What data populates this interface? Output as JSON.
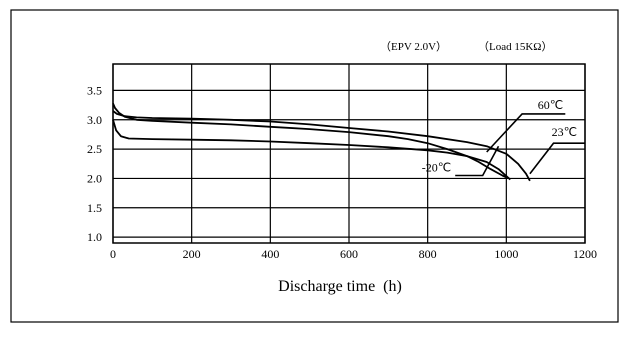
{
  "chart_data": {
    "type": "line",
    "title": "",
    "notes": [
      "（EPV 2.0V）",
      "（Load 15KΩ）"
    ],
    "xlabel": "Discharge time  (h)",
    "ylabel": "",
    "xlim": [
      0,
      1200
    ],
    "ylim": [
      0.9,
      3.95
    ],
    "grid": true,
    "x_ticks": [
      0,
      200,
      400,
      600,
      800,
      1000,
      1200
    ],
    "y_ticks": [
      1.0,
      1.5,
      2.0,
      2.5,
      3.0,
      3.5
    ],
    "x_tick_labels": [
      "0",
      "200",
      "400",
      "600",
      "800",
      "1000",
      "1200"
    ],
    "y_tick_labels": [
      "1.0",
      "1.5",
      "2.0",
      "2.5",
      "3.0",
      "3.5"
    ],
    "series": [
      {
        "name": "60℃",
        "x": [
          0,
          5,
          15,
          30,
          60,
          100,
          200,
          300,
          400,
          500,
          600,
          700,
          750,
          800,
          850,
          900,
          930,
          960,
          990,
          1000
        ],
        "y": [
          3.28,
          3.2,
          3.12,
          3.05,
          3.0,
          2.98,
          2.95,
          2.92,
          2.88,
          2.84,
          2.79,
          2.72,
          2.67,
          2.6,
          2.5,
          2.38,
          2.28,
          2.16,
          2.05,
          2.02
        ]
      },
      {
        "name": "23℃",
        "x": [
          0,
          10,
          30,
          60,
          100,
          200,
          300,
          400,
          500,
          600,
          700,
          800,
          900,
          950,
          1000,
          1030,
          1050,
          1060
        ],
        "y": [
          3.15,
          3.1,
          3.06,
          3.04,
          3.03,
          3.02,
          3.0,
          2.97,
          2.92,
          2.86,
          2.8,
          2.72,
          2.62,
          2.55,
          2.42,
          2.25,
          2.08,
          1.96
        ]
      },
      {
        "name": "-20℃",
        "x": [
          0,
          8,
          20,
          40,
          100,
          200,
          300,
          400,
          500,
          600,
          700,
          800,
          850,
          900,
          950,
          980,
          1000,
          1010
        ],
        "y": [
          3.0,
          2.82,
          2.72,
          2.68,
          2.67,
          2.66,
          2.65,
          2.63,
          2.6,
          2.57,
          2.53,
          2.48,
          2.44,
          2.38,
          2.28,
          2.16,
          2.04,
          1.98
        ]
      }
    ],
    "annotations": [
      {
        "text": "60℃",
        "leader_x": [
          950,
          1040,
          1150
        ],
        "leader_y": [
          2.45,
          3.1,
          3.1
        ],
        "text_x": 1080,
        "text_y": 3.18
      },
      {
        "text": "23℃",
        "leader_x": [
          1060,
          1120,
          1200
        ],
        "leader_y": [
          2.08,
          2.6,
          2.6
        ],
        "text_x": 1115,
        "text_y": 2.72
      },
      {
        "text": "-20℃",
        "leader_x": [
          980,
          940,
          870
        ],
        "leader_y": [
          2.55,
          2.05,
          2.05
        ],
        "text_x": 785,
        "text_y": 2.12
      }
    ]
  }
}
